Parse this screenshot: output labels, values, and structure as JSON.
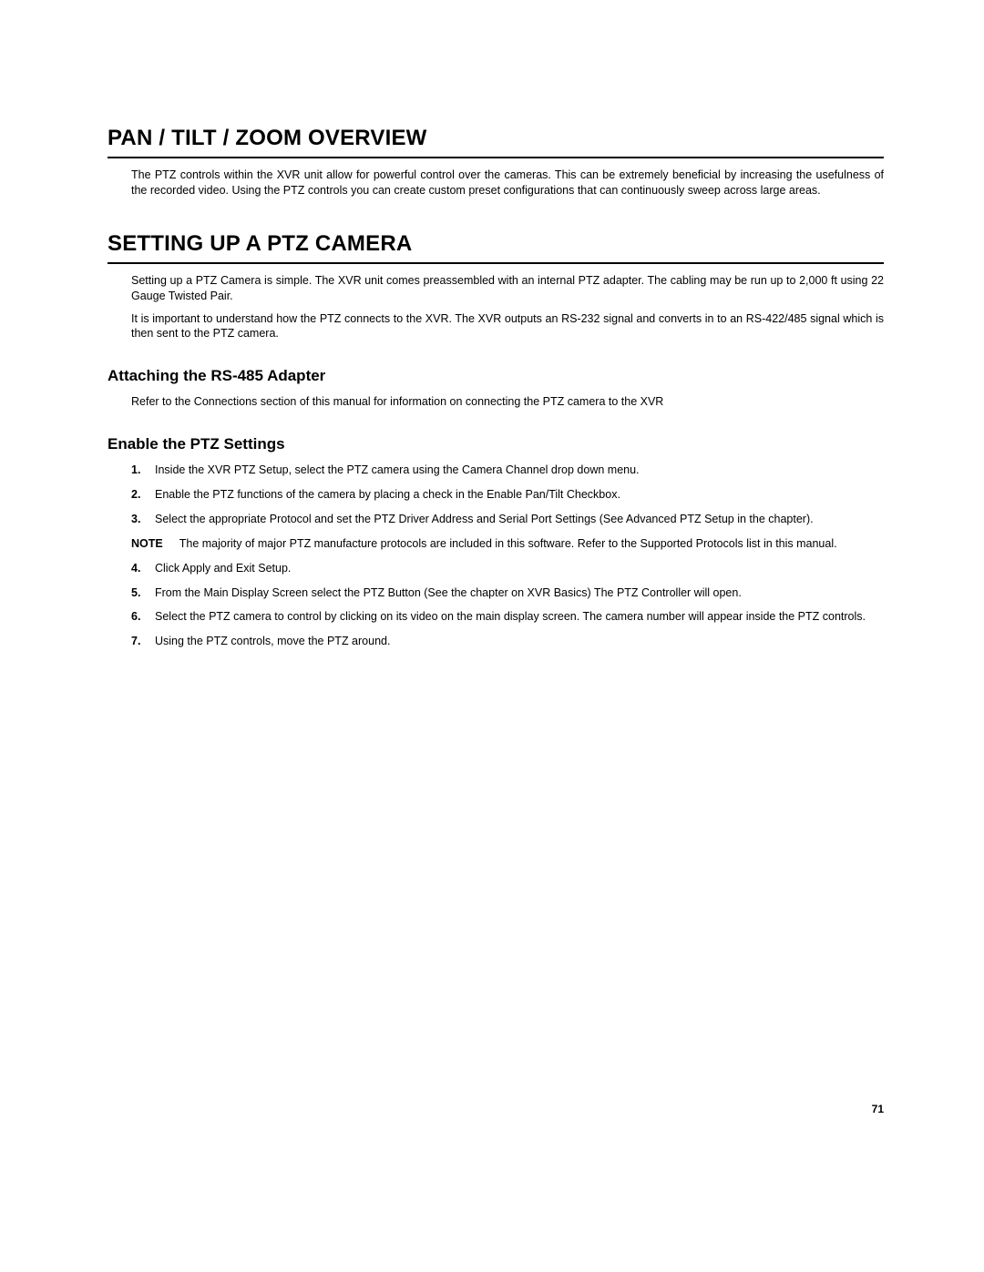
{
  "page_number": "71",
  "sections": [
    {
      "heading": "PAN / TILT / ZOOM OVERVIEW",
      "paragraphs": [
        "The PTZ controls within the XVR unit allow for powerful control over the cameras. This can be extremely beneficial by increasing the usefulness of the recorded video. Using the PTZ controls you can create custom preset configurations that can continuously sweep across large areas."
      ]
    },
    {
      "heading": "SETTING UP A PTZ CAMERA",
      "paragraphs": [
        "Setting up a PTZ Camera is simple. The XVR unit comes preassembled with an internal PTZ adapter. The cabling may be run up to 2,000 ft using 22 Gauge Twisted Pair.",
        "It is important to understand how the PTZ connects to the XVR. The XVR outputs an RS-232 signal and converts in to an RS-422/485 signal which is then sent to the PTZ camera."
      ],
      "subsections": [
        {
          "heading": "Attaching the RS-485 Adapter",
          "paragraphs": [
            "Refer to the Connections section of this manual for information on connecting the PTZ camera to the XVR"
          ]
        },
        {
          "heading": "Enable the PTZ Settings",
          "steps_a": [
            {
              "num": "1.",
              "text": "Inside the XVR PTZ Setup, select the PTZ camera using the Camera Channel drop down menu."
            },
            {
              "num": "2.",
              "text": "Enable the PTZ functions of the camera by placing a check in the Enable Pan/Tilt Checkbox."
            },
            {
              "num": "3.",
              "text": "Select the appropriate Protocol and set the PTZ Driver Address and Serial Port Settings (See Advanced PTZ Setup in the chapter)."
            }
          ],
          "note_label": "NOTE",
          "note_text": "The majority of major PTZ manufacture protocols are included in this software.  Refer to the Supported Protocols list in this manual.",
          "steps_b": [
            {
              "num": "4.",
              "text": "Click Apply and Exit Setup."
            },
            {
              "num": "5.",
              "text": "From the Main Display Screen select the PTZ Button (See the chapter on XVR Basics) The PTZ Controller will open."
            },
            {
              "num": "6.",
              "text": "Select the PTZ camera to control by clicking on its video on the main display screen.   The camera number will appear inside the PTZ controls."
            },
            {
              "num": "7.",
              "text": "Using the PTZ controls, move the PTZ around."
            }
          ]
        }
      ]
    }
  ]
}
